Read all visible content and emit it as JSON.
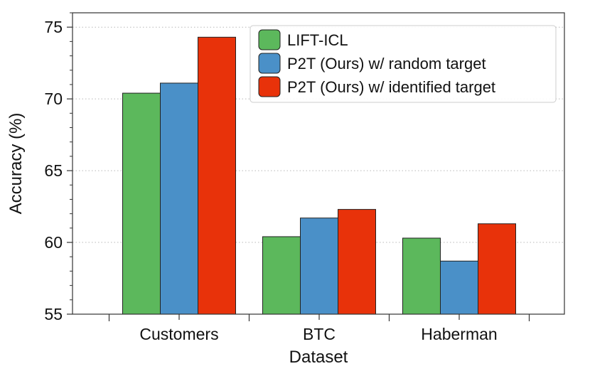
{
  "chart_data": {
    "type": "bar",
    "xlabel": "Dataset",
    "ylabel": "Accuracy (%)",
    "categories": [
      "Customers",
      "BTC",
      "Haberman"
    ],
    "series": [
      {
        "name": "LIFT-ICL",
        "color": "#5cb85c",
        "values": [
          70.4,
          60.4,
          60.3
        ]
      },
      {
        "name": "P2T (Ours) w/ random target",
        "color": "#4a90c8",
        "values": [
          71.1,
          61.7,
          58.7
        ]
      },
      {
        "name": "P2T (Ours) w/ identified target",
        "color": "#e8320a",
        "values": [
          74.3,
          62.3,
          61.3
        ]
      }
    ],
    "ylim": [
      55,
      76
    ],
    "yticks": [
      55,
      60,
      65,
      70,
      75
    ],
    "grid": true,
    "legend": "top-right"
  }
}
